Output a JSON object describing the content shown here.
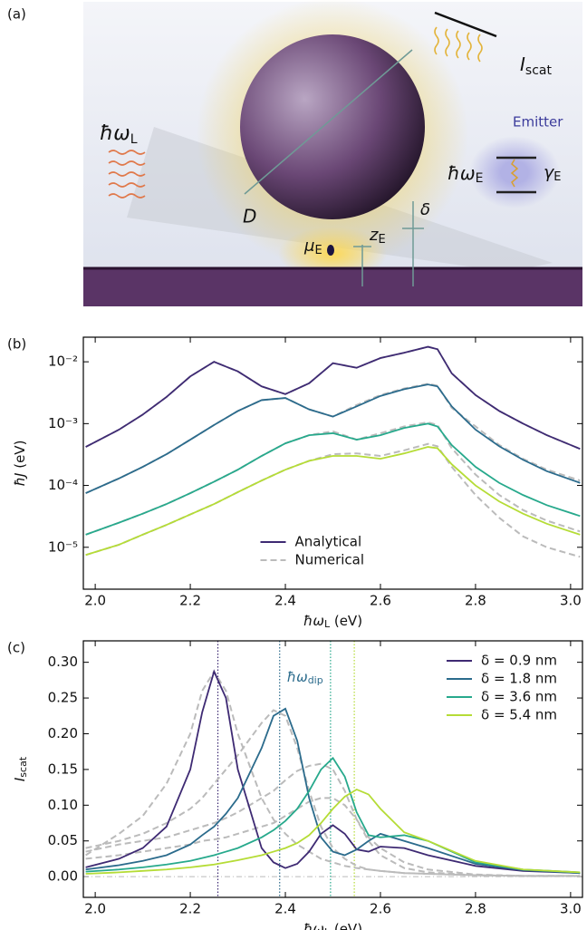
{
  "diagram": {
    "panel_label": "(a)",
    "incident": {
      "main": "ħω",
      "sub": "L"
    },
    "diameter": "D",
    "dipole": {
      "main": "μ",
      "sub": "E"
    },
    "height": {
      "main": "z",
      "sub": "E"
    },
    "gap": "δ",
    "scattered": {
      "main": "I",
      "sub": "scat"
    },
    "emitter": "Emitter",
    "emitter_energy": {
      "main": "ħω",
      "sub": "E"
    },
    "emitter_width": {
      "main": "γ",
      "sub": "E"
    }
  },
  "chart_data": [
    {
      "type": "line",
      "panel_label": "(b)",
      "log": true,
      "xlabel": {
        "main": "ħω",
        "sub": "L",
        "unit": " (eV)"
      },
      "ylabel": {
        "main": "ħJ",
        "unit": " (eV)"
      },
      "xlim": [
        1.975,
        3.025
      ],
      "ylim": [
        2.1e-06,
        0.025
      ],
      "xticks": [
        {
          "value": 2,
          "label": "2.0"
        },
        2.2,
        2.4,
        2.6,
        2.8,
        {
          "value": 3,
          "label": "3.0"
        }
      ],
      "yticks": [
        {
          "value": 1e-05,
          "label": "10⁻⁵"
        },
        {
          "value": 0.0001,
          "label": "10⁻⁴"
        },
        {
          "value": 0.001,
          "label": "10⁻³"
        },
        {
          "value": 0.01,
          "label": "10⁻²"
        }
      ],
      "legend_loc": "lower center",
      "legend": [
        {
          "name": "Analytical",
          "color": "#3e2a73",
          "style": "solid"
        },
        {
          "name": "Numerical",
          "color": "#bbbbbb",
          "style": "dashed"
        }
      ],
      "x": [
        1.98,
        2.05,
        2.1,
        2.15,
        2.2,
        2.25,
        2.3,
        2.35,
        2.4,
        2.45,
        2.5,
        2.55,
        2.6,
        2.65,
        2.7,
        2.72,
        2.75,
        2.8,
        2.85,
        2.9,
        2.95,
        3.02
      ],
      "series": [
        {
          "color": "#bbbbbb",
          "style": "dashed",
          "values": [
            0.00042,
            0.0008,
            0.0014,
            0.0027,
            0.0058,
            0.01,
            0.007,
            0.004,
            0.003,
            0.0045,
            0.0095,
            0.008,
            0.0115,
            0.014,
            0.0175,
            0.016,
            0.0065,
            0.0029,
            0.0016,
            0.001,
            0.00065,
            0.00039
          ]
        },
        {
          "color": "#bbbbbb",
          "style": "dashed",
          "values": [
            7.5e-05,
            0.00013,
            0.0002,
            0.00032,
            0.00055,
            0.00095,
            0.0016,
            0.0024,
            0.0026,
            0.0017,
            0.0013,
            0.002,
            0.0029,
            0.0037,
            0.0044,
            0.0041,
            0.0018,
            0.0009,
            0.00045,
            0.00027,
            0.00018,
            0.00012
          ]
        },
        {
          "color": "#bbbbbb",
          "style": "dashed",
          "values": [
            1.6e-05,
            2.5e-05,
            3.5e-05,
            5e-05,
            7.5e-05,
            0.000115,
            0.00018,
            0.0003,
            0.00048,
            0.00065,
            0.00075,
            0.00055,
            0.0007,
            0.0009,
            0.00105,
            0.00095,
            0.0004,
            0.00015,
            7e-05,
            4e-05,
            2.7e-05,
            1.8e-05
          ]
        },
        {
          "color": "#bbbbbb",
          "style": "dashed",
          "values": [
            7.5e-06,
            1.1e-05,
            1.6e-05,
            2.3e-05,
            3.4e-05,
            5e-05,
            7.8e-05,
            0.00012,
            0.00018,
            0.00025,
            0.00032,
            0.00033,
            0.0003,
            0.00037,
            0.00047,
            0.00043,
            0.0002,
            7e-05,
            3e-05,
            1.5e-05,
            1e-05,
            7e-06
          ]
        },
        {
          "color": "#3e2a73",
          "style": "solid",
          "values": [
            0.00042,
            0.0008,
            0.0014,
            0.0027,
            0.0058,
            0.01,
            0.007,
            0.004,
            0.003,
            0.0045,
            0.0095,
            0.008,
            0.0115,
            0.014,
            0.0175,
            0.016,
            0.0065,
            0.0029,
            0.0016,
            0.001,
            0.00065,
            0.00039
          ]
        },
        {
          "color": "#2b6b8c",
          "style": "solid",
          "values": [
            7.5e-05,
            0.00013,
            0.0002,
            0.00032,
            0.00055,
            0.00095,
            0.0016,
            0.0024,
            0.0026,
            0.0017,
            0.0013,
            0.0019,
            0.0028,
            0.0036,
            0.0043,
            0.004,
            0.0019,
            0.0008,
            0.00043,
            0.00026,
            0.00017,
            0.00011
          ]
        },
        {
          "color": "#27a98c",
          "style": "solid",
          "values": [
            1.6e-05,
            2.5e-05,
            3.5e-05,
            5e-05,
            7.5e-05,
            0.000115,
            0.00018,
            0.0003,
            0.00048,
            0.00065,
            0.0007,
            0.00055,
            0.00065,
            0.00085,
            0.001,
            0.0009,
            0.00045,
            0.0002,
            0.00011,
            7e-05,
            4.8e-05,
            3.2e-05
          ]
        },
        {
          "color": "#b5dc36",
          "style": "solid",
          "values": [
            7.5e-06,
            1.1e-05,
            1.6e-05,
            2.3e-05,
            3.4e-05,
            5e-05,
            7.8e-05,
            0.00012,
            0.00018,
            0.00025,
            0.0003,
            0.0003,
            0.00027,
            0.00033,
            0.00042,
            0.0004,
            0.00022,
            0.0001,
            5.5e-05,
            3.5e-05,
            2.4e-05,
            1.6e-05
          ]
        }
      ]
    },
    {
      "type": "line",
      "panel_label": "(c)",
      "log": false,
      "xlabel": {
        "main": "ħω",
        "sub": "L",
        "unit": " (eV)"
      },
      "ylabel": {
        "main": "I",
        "sub": "scat"
      },
      "xlim": [
        1.975,
        3.025
      ],
      "ylim": [
        -0.029,
        0.33
      ],
      "xticks": [
        {
          "value": 2,
          "label": "2.0"
        },
        2.2,
        2.4,
        2.6,
        2.8,
        {
          "value": 3,
          "label": "3.0"
        }
      ],
      "yticks": [
        {
          "value": 0,
          "label": "0.00"
        },
        0.05,
        {
          "value": 0.1,
          "label": "0.10"
        },
        0.15,
        {
          "value": 0.2,
          "label": "0.20"
        },
        0.25,
        {
          "value": 0.3,
          "label": "0.30"
        }
      ],
      "legend_loc": "upper right",
      "zero_line": true,
      "annotation": {
        "main": "ħω",
        "sub": "dip",
        "color": "#2b6b8c"
      },
      "vlines": [
        {
          "x": 2.258,
          "color": "#3e2a73"
        },
        {
          "x": 2.388,
          "color": "#2b6b8c"
        },
        {
          "x": 2.495,
          "color": "#27a98c"
        },
        {
          "x": 2.545,
          "color": "#b5dc36"
        }
      ],
      "x": [
        1.98,
        2.05,
        2.1,
        2.15,
        2.2,
        2.225,
        2.25,
        2.275,
        2.3,
        2.35,
        2.375,
        2.4,
        2.425,
        2.45,
        2.475,
        2.5,
        2.525,
        2.55,
        2.575,
        2.6,
        2.65,
        2.7,
        2.8,
        2.9,
        3.02
      ],
      "series": [
        {
          "color": "#bbbbbb",
          "style": "dashed",
          "values": [
            0.03,
            0.06,
            0.085,
            0.13,
            0.2,
            0.26,
            0.287,
            0.26,
            0.2,
            0.11,
            0.08,
            0.06,
            0.045,
            0.035,
            0.025,
            0.02,
            0.015,
            0.012,
            0.01,
            0.008,
            0.005,
            0.004,
            0.002,
            0.001,
            0.001
          ]
        },
        {
          "color": "#bbbbbb",
          "style": "dashed",
          "values": [
            0.04,
            0.05,
            0.06,
            0.075,
            0.095,
            0.11,
            0.13,
            0.15,
            0.17,
            0.215,
            0.233,
            0.225,
            0.18,
            0.12,
            0.07,
            0.04,
            0.025,
            0.015,
            0.01,
            0.008,
            0.005,
            0.004,
            0.002,
            0.001,
            0.001
          ]
        },
        {
          "color": "#bbbbbb",
          "style": "dashed",
          "values": [
            0.035,
            0.045,
            0.05,
            0.055,
            0.065,
            0.07,
            0.075,
            0.082,
            0.09,
            0.11,
            0.12,
            0.135,
            0.148,
            0.155,
            0.158,
            0.15,
            0.12,
            0.08,
            0.05,
            0.03,
            0.012,
            0.006,
            0.002,
            0.001,
            0.001
          ]
        },
        {
          "color": "#bbbbbb",
          "style": "dashed",
          "values": [
            0.025,
            0.03,
            0.035,
            0.04,
            0.045,
            0.05,
            0.052,
            0.055,
            0.06,
            0.07,
            0.075,
            0.085,
            0.095,
            0.105,
            0.11,
            0.11,
            0.1,
            0.08,
            0.055,
            0.04,
            0.02,
            0.01,
            0.003,
            0.001,
            0.001
          ]
        },
        {
          "name": "δ = 0.9 nm",
          "color": "#3e2a73",
          "style": "solid",
          "values": [
            0.013,
            0.025,
            0.04,
            0.07,
            0.15,
            0.23,
            0.287,
            0.25,
            0.15,
            0.04,
            0.02,
            0.012,
            0.018,
            0.035,
            0.06,
            0.072,
            0.06,
            0.038,
            0.035,
            0.042,
            0.04,
            0.03,
            0.015,
            0.008,
            0.005
          ]
        },
        {
          "name": "δ = 1.8 nm",
          "color": "#2b6b8c",
          "style": "solid",
          "values": [
            0.01,
            0.016,
            0.022,
            0.03,
            0.045,
            0.058,
            0.07,
            0.088,
            0.11,
            0.18,
            0.225,
            0.235,
            0.19,
            0.11,
            0.055,
            0.035,
            0.03,
            0.038,
            0.05,
            0.06,
            0.05,
            0.04,
            0.018,
            0.009,
            0.005
          ]
        },
        {
          "name": "δ = 3.6 nm",
          "color": "#27a98c",
          "style": "solid",
          "values": [
            0.007,
            0.01,
            0.013,
            0.017,
            0.022,
            0.026,
            0.03,
            0.035,
            0.04,
            0.055,
            0.065,
            0.078,
            0.095,
            0.12,
            0.15,
            0.166,
            0.14,
            0.09,
            0.058,
            0.055,
            0.058,
            0.05,
            0.02,
            0.01,
            0.006
          ]
        },
        {
          "name": "δ = 5.4 nm",
          "color": "#b5dc36",
          "style": "solid",
          "values": [
            0.004,
            0.006,
            0.008,
            0.01,
            0.013,
            0.015,
            0.017,
            0.02,
            0.023,
            0.03,
            0.035,
            0.04,
            0.047,
            0.058,
            0.075,
            0.095,
            0.112,
            0.122,
            0.115,
            0.095,
            0.062,
            0.05,
            0.022,
            0.01,
            0.006
          ]
        }
      ]
    }
  ]
}
